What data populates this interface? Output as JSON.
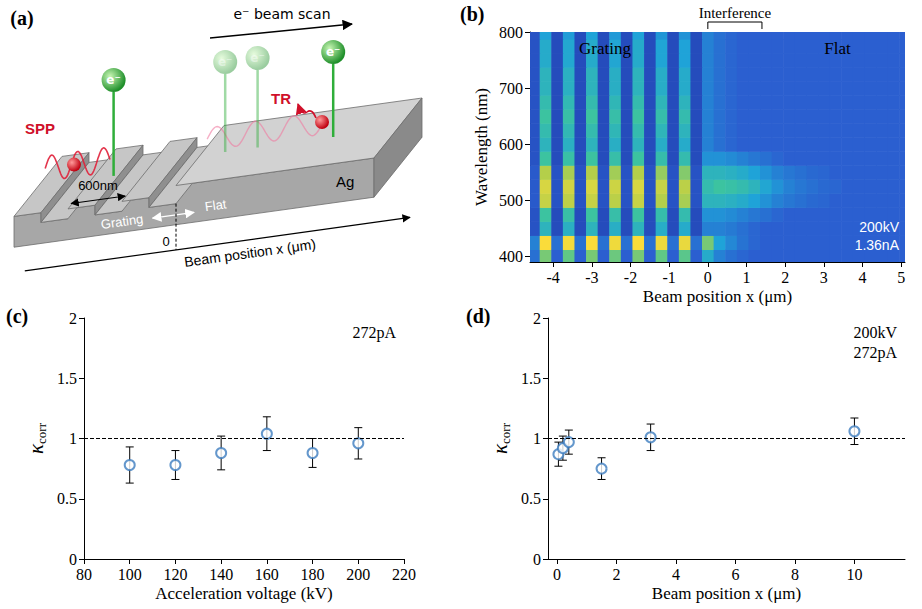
{
  "diagram": {
    "panel": "(a)",
    "beam_scan": "e⁻ beam scan",
    "electrons": [
      "e⁻",
      "e⁻",
      "e⁻",
      "e⁻"
    ],
    "emissions": [
      "SPP",
      "TR"
    ],
    "period": "600nm",
    "regions": [
      "Grating",
      "Flat"
    ],
    "material": "Ag",
    "origin": "0",
    "axis": "Beam position x (μm)"
  },
  "chart_data": [
    {
      "panel": "(b)",
      "type": "heatmap",
      "xlabel": "Beam position x (μm)",
      "ylabel": "Wavelength (nm)",
      "region_labels": [
        "Grating",
        "Flat"
      ],
      "bracket": {
        "text": "Interference",
        "x_range": [
          0,
          1.4
        ]
      },
      "conditions": [
        "200kV",
        "1.36nA"
      ],
      "xlim": [
        -4.6,
        5.1
      ],
      "xticks": [
        -4,
        -3,
        -2,
        -1,
        0,
        1,
        2,
        3,
        4,
        5
      ],
      "ylim": [
        390,
        800
      ],
      "yticks": [
        400,
        500,
        600,
        700,
        800
      ],
      "zlim": [
        0,
        1
      ],
      "grid": false,
      "x": [
        -4.5,
        -4.2,
        -3.9,
        -3.6,
        -3.3,
        -3,
        -2.7,
        -2.4,
        -2.1,
        -1.8,
        -1.5,
        -1.2,
        -0.9,
        -0.6,
        -0.3,
        0,
        0.3,
        0.6,
        0.9,
        1.2,
        1.5,
        1.8,
        2.1,
        2.4,
        2.7,
        3,
        3.3,
        3.6,
        3.9,
        4.2,
        4.5,
        4.8,
        5.1
      ],
      "y": [
        400,
        425,
        450,
        475,
        500,
        525,
        550,
        575,
        600,
        625,
        650,
        675,
        700,
        725,
        750,
        775,
        800
      ],
      "cells": [
        [
          0.25,
          0.7,
          0.2,
          0.66,
          0.2,
          0.7,
          0.2,
          0.68,
          0.2,
          0.7,
          0.2,
          0.66,
          0.2,
          0.65,
          0.2,
          0.45,
          0.3,
          0.25,
          0.22,
          0.2,
          0.2,
          0.2,
          0.2,
          0.2,
          0.2,
          0.2,
          0.2,
          0.2,
          0.2,
          0.2,
          0.2,
          0.2,
          0.2
        ],
        [
          0.3,
          1.0,
          0.25,
          0.98,
          0.25,
          1.0,
          0.25,
          0.97,
          0.25,
          1.0,
          0.25,
          0.96,
          0.25,
          0.95,
          0.25,
          0.7,
          0.4,
          0.32,
          0.26,
          0.22,
          0.2,
          0.2,
          0.2,
          0.2,
          0.2,
          0.2,
          0.2,
          0.2,
          0.2,
          0.2,
          0.2,
          0.2,
          0.2
        ],
        [
          0.15,
          0.5,
          0.12,
          0.48,
          0.12,
          0.5,
          0.12,
          0.47,
          0.12,
          0.5,
          0.12,
          0.46,
          0.12,
          0.45,
          0.12,
          0.3,
          0.3,
          0.28,
          0.25,
          0.22,
          0.2,
          0.2,
          0.2,
          0.2,
          0.2,
          0.2,
          0.2,
          0.2,
          0.2,
          0.2,
          0.2,
          0.2,
          0.2
        ],
        [
          0.15,
          0.6,
          0.12,
          0.58,
          0.12,
          0.6,
          0.12,
          0.57,
          0.12,
          0.6,
          0.12,
          0.56,
          0.12,
          0.55,
          0.12,
          0.35,
          0.35,
          0.33,
          0.3,
          0.27,
          0.25,
          0.22,
          0.2,
          0.2,
          0.2,
          0.2,
          0.2,
          0.2,
          0.2,
          0.2,
          0.2,
          0.2,
          0.2
        ],
        [
          0.18,
          0.85,
          0.15,
          0.83,
          0.15,
          0.85,
          0.15,
          0.82,
          0.15,
          0.85,
          0.15,
          0.8,
          0.15,
          0.78,
          0.15,
          0.5,
          0.5,
          0.48,
          0.45,
          0.4,
          0.35,
          0.3,
          0.27,
          0.25,
          0.23,
          0.22,
          0.2,
          0.2,
          0.2,
          0.2,
          0.2,
          0.2,
          0.2
        ],
        [
          0.18,
          0.9,
          0.15,
          0.88,
          0.15,
          0.9,
          0.15,
          0.87,
          0.15,
          0.9,
          0.15,
          0.85,
          0.15,
          0.82,
          0.15,
          0.55,
          0.6,
          0.58,
          0.55,
          0.5,
          0.42,
          0.35,
          0.3,
          0.27,
          0.25,
          0.23,
          0.22,
          0.2,
          0.2,
          0.2,
          0.2,
          0.2,
          0.2
        ],
        [
          0.18,
          0.8,
          0.15,
          0.78,
          0.15,
          0.8,
          0.15,
          0.77,
          0.15,
          0.8,
          0.15,
          0.75,
          0.15,
          0.72,
          0.15,
          0.5,
          0.5,
          0.48,
          0.45,
          0.4,
          0.35,
          0.3,
          0.27,
          0.25,
          0.23,
          0.22,
          0.2,
          0.2,
          0.2,
          0.2,
          0.2,
          0.2,
          0.2
        ],
        [
          0.15,
          0.6,
          0.12,
          0.58,
          0.12,
          0.6,
          0.12,
          0.57,
          0.12,
          0.6,
          0.12,
          0.56,
          0.12,
          0.55,
          0.12,
          0.35,
          0.35,
          0.33,
          0.3,
          0.27,
          0.25,
          0.22,
          0.2,
          0.2,
          0.2,
          0.2,
          0.2,
          0.2,
          0.2,
          0.2,
          0.2,
          0.2,
          0.2
        ],
        [
          0.15,
          0.5,
          0.12,
          0.48,
          0.12,
          0.5,
          0.12,
          0.47,
          0.12,
          0.5,
          0.12,
          0.46,
          0.12,
          0.45,
          0.12,
          0.3,
          0.25,
          0.22,
          0.2,
          0.2,
          0.2,
          0.2,
          0.2,
          0.2,
          0.2,
          0.2,
          0.2,
          0.2,
          0.2,
          0.2,
          0.2,
          0.2,
          0.2
        ],
        [
          0.15,
          0.55,
          0.12,
          0.53,
          0.12,
          0.55,
          0.12,
          0.52,
          0.12,
          0.55,
          0.12,
          0.51,
          0.12,
          0.5,
          0.12,
          0.3,
          0.25,
          0.22,
          0.2,
          0.2,
          0.2,
          0.2,
          0.2,
          0.2,
          0.2,
          0.2,
          0.2,
          0.2,
          0.2,
          0.2,
          0.2,
          0.2,
          0.2
        ],
        [
          0.15,
          0.6,
          0.12,
          0.58,
          0.12,
          0.6,
          0.12,
          0.57,
          0.12,
          0.6,
          0.12,
          0.56,
          0.12,
          0.55,
          0.12,
          0.3,
          0.25,
          0.22,
          0.2,
          0.2,
          0.2,
          0.2,
          0.2,
          0.2,
          0.2,
          0.2,
          0.2,
          0.2,
          0.2,
          0.2,
          0.2,
          0.2,
          0.2
        ],
        [
          0.15,
          0.55,
          0.12,
          0.53,
          0.12,
          0.55,
          0.12,
          0.52,
          0.12,
          0.55,
          0.12,
          0.51,
          0.12,
          0.5,
          0.12,
          0.3,
          0.25,
          0.22,
          0.2,
          0.2,
          0.2,
          0.2,
          0.2,
          0.2,
          0.2,
          0.2,
          0.2,
          0.2,
          0.2,
          0.2,
          0.2,
          0.2,
          0.2
        ],
        [
          0.15,
          0.5,
          0.12,
          0.48,
          0.12,
          0.5,
          0.12,
          0.47,
          0.12,
          0.5,
          0.12,
          0.46,
          0.12,
          0.45,
          0.12,
          0.3,
          0.25,
          0.22,
          0.2,
          0.2,
          0.2,
          0.2,
          0.2,
          0.2,
          0.2,
          0.2,
          0.2,
          0.2,
          0.2,
          0.2,
          0.2,
          0.2,
          0.2
        ],
        [
          0.15,
          0.5,
          0.12,
          0.48,
          0.12,
          0.5,
          0.12,
          0.47,
          0.12,
          0.5,
          0.12,
          0.46,
          0.12,
          0.45,
          0.12,
          0.3,
          0.25,
          0.22,
          0.2,
          0.2,
          0.2,
          0.2,
          0.2,
          0.2,
          0.2,
          0.2,
          0.2,
          0.2,
          0.2,
          0.2,
          0.2,
          0.2,
          0.2
        ],
        [
          0.15,
          0.45,
          0.12,
          0.43,
          0.12,
          0.45,
          0.12,
          0.42,
          0.12,
          0.45,
          0.12,
          0.41,
          0.12,
          0.4,
          0.12,
          0.3,
          0.25,
          0.22,
          0.2,
          0.2,
          0.2,
          0.2,
          0.2,
          0.2,
          0.2,
          0.2,
          0.2,
          0.2,
          0.2,
          0.2,
          0.2,
          0.2,
          0.2
        ],
        [
          0.15,
          0.45,
          0.12,
          0.43,
          0.12,
          0.45,
          0.12,
          0.42,
          0.12,
          0.45,
          0.12,
          0.41,
          0.12,
          0.4,
          0.12,
          0.3,
          0.25,
          0.22,
          0.2,
          0.2,
          0.2,
          0.2,
          0.2,
          0.2,
          0.2,
          0.2,
          0.2,
          0.2,
          0.2,
          0.2,
          0.2,
          0.2,
          0.2
        ],
        [
          0.15,
          0.4,
          0.12,
          0.38,
          0.12,
          0.4,
          0.12,
          0.37,
          0.12,
          0.4,
          0.12,
          0.36,
          0.12,
          0.35,
          0.12,
          0.3,
          0.25,
          0.22,
          0.2,
          0.2,
          0.2,
          0.2,
          0.2,
          0.2,
          0.2,
          0.2,
          0.2,
          0.2,
          0.2,
          0.2,
          0.2,
          0.2,
          0.2
        ]
      ]
    },
    {
      "panel": "(c)",
      "type": "scatter",
      "xlabel": "Acceleration voltage (kV)",
      "ylabel": {
        "symbol": "κ",
        "subscript": "corr"
      },
      "conditions": [
        "272pA"
      ],
      "x": [
        100,
        120,
        140,
        160,
        180,
        200
      ],
      "values": [
        0.78,
        0.78,
        0.88,
        1.04,
        0.88,
        0.96
      ],
      "errors": [
        0.15,
        0.12,
        0.14,
        0.14,
        0.12,
        0.13
      ],
      "xlim": [
        80,
        220
      ],
      "xticks": [
        80,
        100,
        120,
        140,
        160,
        180,
        200,
        220
      ],
      "ylim": [
        0,
        2
      ],
      "yticks": [
        0,
        0.5,
        1,
        1.5,
        2
      ],
      "reference_line": 1,
      "marker": "open circle",
      "color": "#3d7dbf",
      "grid": false
    },
    {
      "panel": "(d)",
      "type": "scatter",
      "xlabel": "Beam position x (μm)",
      "ylabel": {
        "symbol": "κ",
        "subscript": "corr"
      },
      "conditions": [
        "200kV",
        "272pA"
      ],
      "x": [
        0.05,
        0.2,
        0.4,
        1.5,
        3.15,
        10
      ],
      "values": [
        0.87,
        0.92,
        0.97,
        0.75,
        1.01,
        1.06
      ],
      "errors": [
        0.1,
        0.1,
        0.1,
        0.09,
        0.11,
        0.11
      ],
      "xlim": [
        -0.3,
        11.7
      ],
      "xticks": [
        0,
        2,
        4,
        6,
        8,
        10
      ],
      "ylim": [
        0,
        2
      ],
      "yticks": [
        0,
        0.5,
        1,
        1.5,
        2
      ],
      "reference_line": 1,
      "marker": "open circle",
      "color": "#3d7dbf",
      "grid": false
    }
  ]
}
